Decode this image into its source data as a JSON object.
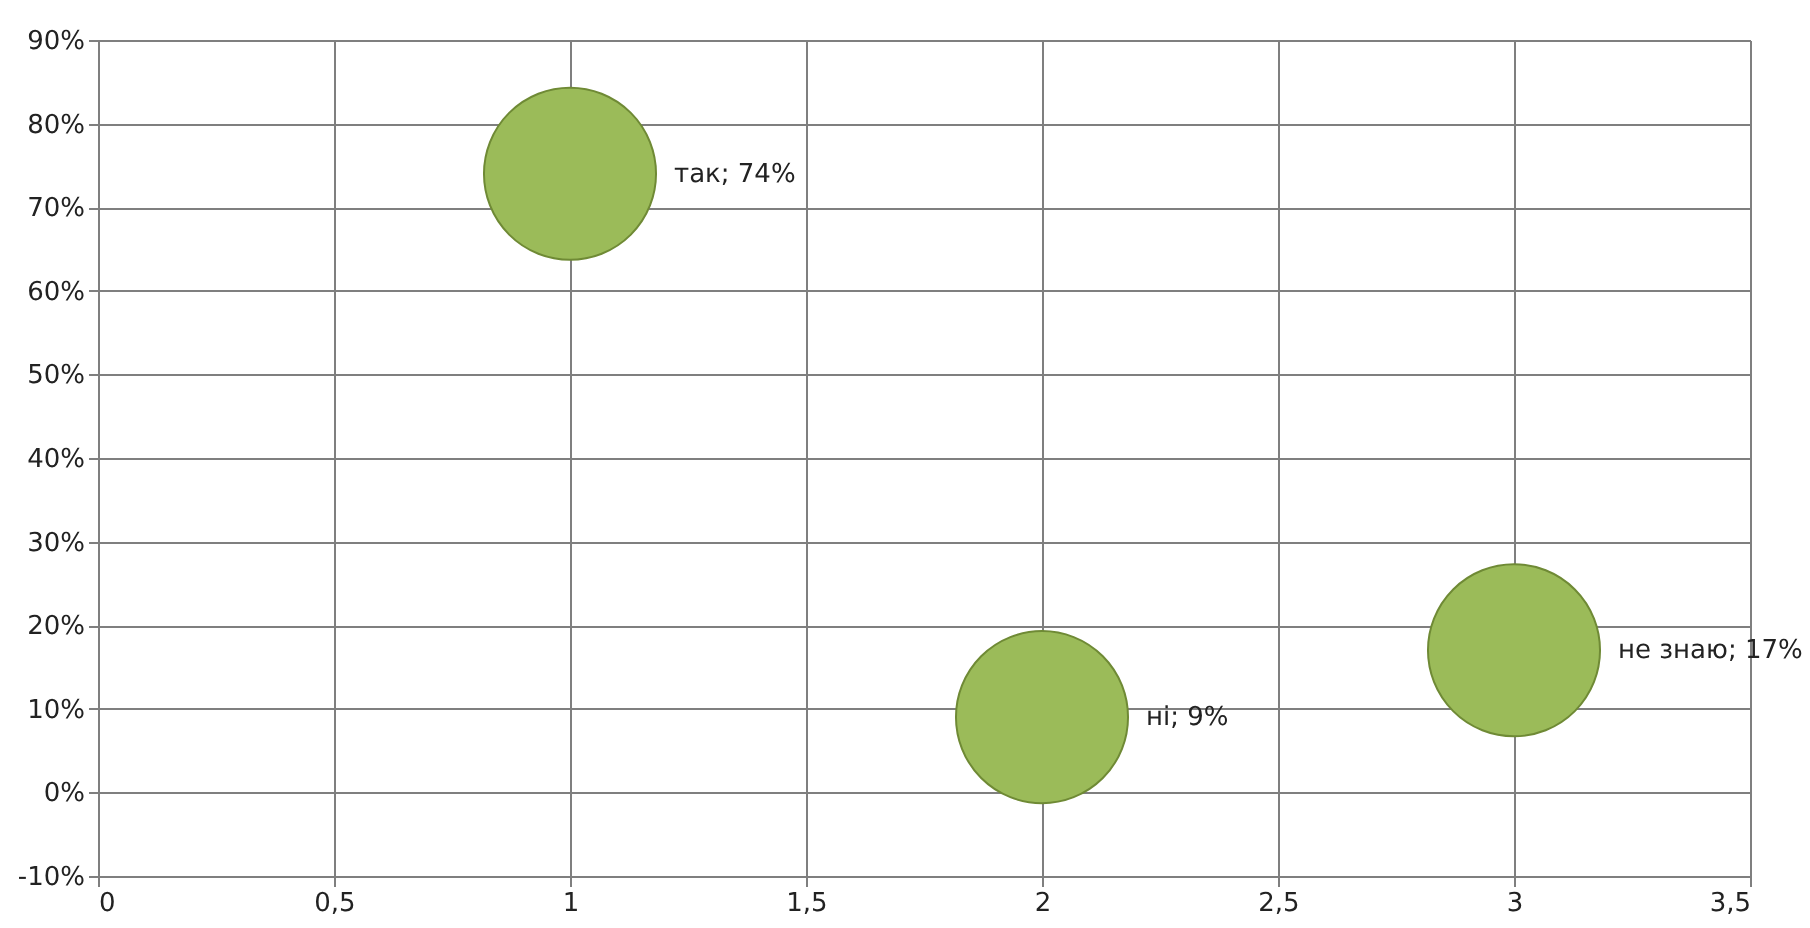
{
  "chart_data": {
    "type": "bubble",
    "x": [
      1,
      2,
      3
    ],
    "series": [
      {
        "color": "#9bbb59",
        "values": [
          74,
          9,
          17
        ],
        "sizes": [
          1,
          1,
          1
        ],
        "value_labels": [
          "так; 74%",
          "ні; 9%",
          "не знаю; 17%"
        ]
      }
    ],
    "xlim": [
      0,
      3.5
    ],
    "xticks": [
      {
        "value": 0,
        "label": "0"
      },
      {
        "value": 0.5,
        "label": "0,5"
      },
      {
        "value": 1,
        "label": "1"
      },
      {
        "value": 1.5,
        "label": "1,5"
      },
      {
        "value": 2,
        "label": "2"
      },
      {
        "value": 2.5,
        "label": "2,5"
      },
      {
        "value": 3,
        "label": "3"
      },
      {
        "value": 3.5,
        "label": "3,5"
      }
    ],
    "ylim": [
      -10,
      90
    ],
    "yticks": [
      {
        "value": -10,
        "label": "-10%"
      },
      {
        "value": 0,
        "label": "0%"
      },
      {
        "value": 10,
        "label": "10%"
      },
      {
        "value": 20,
        "label": "20%"
      },
      {
        "value": 30,
        "label": "30%"
      },
      {
        "value": 40,
        "label": "40%"
      },
      {
        "value": 50,
        "label": "50%"
      },
      {
        "value": 60,
        "label": "60%"
      },
      {
        "value": 70,
        "label": "70%"
      },
      {
        "value": 80,
        "label": "80%"
      },
      {
        "value": 90,
        "label": "90%"
      }
    ],
    "grid": true
  }
}
